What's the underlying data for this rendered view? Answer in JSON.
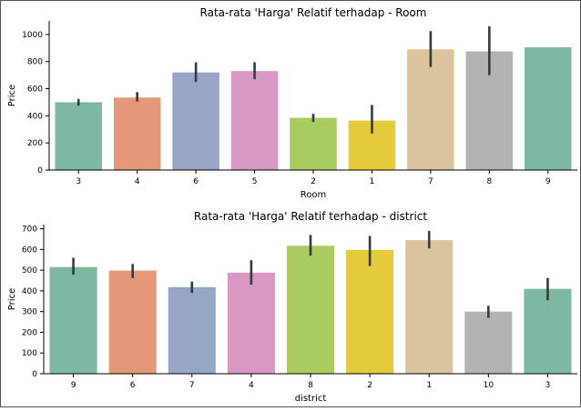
{
  "chart_data": [
    {
      "type": "bar",
      "title": "Rata-rata 'Harga' Relatif terhadap - Room",
      "xlabel": "Room",
      "ylabel": "Price",
      "categories": [
        "3",
        "4",
        "6",
        "5",
        "2",
        "1",
        "7",
        "8",
        "9"
      ],
      "values": [
        500,
        535,
        720,
        730,
        385,
        365,
        890,
        875,
        905
      ],
      "error_low": [
        475,
        505,
        650,
        670,
        355,
        270,
        760,
        700,
        905
      ],
      "error_high": [
        525,
        575,
        795,
        795,
        415,
        480,
        1025,
        1060,
        905
      ],
      "yticks": [
        0,
        200,
        400,
        600,
        800,
        1000
      ],
      "ylim": [
        0,
        1100
      ],
      "colors": [
        "#7fb8a1",
        "#e5977a",
        "#97a6c6",
        "#d997c4",
        "#a9cb60",
        "#e3cb3c",
        "#d9c49d",
        "#b3b3b3",
        "#7fb8a1"
      ],
      "grid": false
    },
    {
      "type": "bar",
      "title": "Rata-rata 'Harga' Relatif terhadap - district",
      "xlabel": "district",
      "ylabel": "Price",
      "categories": [
        "9",
        "6",
        "7",
        "4",
        "8",
        "2",
        "1",
        "10",
        "3"
      ],
      "values": [
        515,
        498,
        418,
        488,
        618,
        598,
        645,
        300,
        410
      ],
      "error_low": [
        478,
        462,
        390,
        430,
        570,
        520,
        605,
        270,
        355
      ],
      "error_high": [
        560,
        530,
        445,
        548,
        670,
        665,
        690,
        328,
        462
      ],
      "yticks": [
        0,
        100,
        200,
        300,
        400,
        500,
        600,
        700
      ],
      "ylim": [
        0,
        720
      ],
      "colors": [
        "#7fb8a1",
        "#e5977a",
        "#97a6c6",
        "#d997c4",
        "#a9cb60",
        "#e3cb3c",
        "#d9c49d",
        "#b3b3b3",
        "#7fb8a1"
      ],
      "grid": false
    }
  ]
}
